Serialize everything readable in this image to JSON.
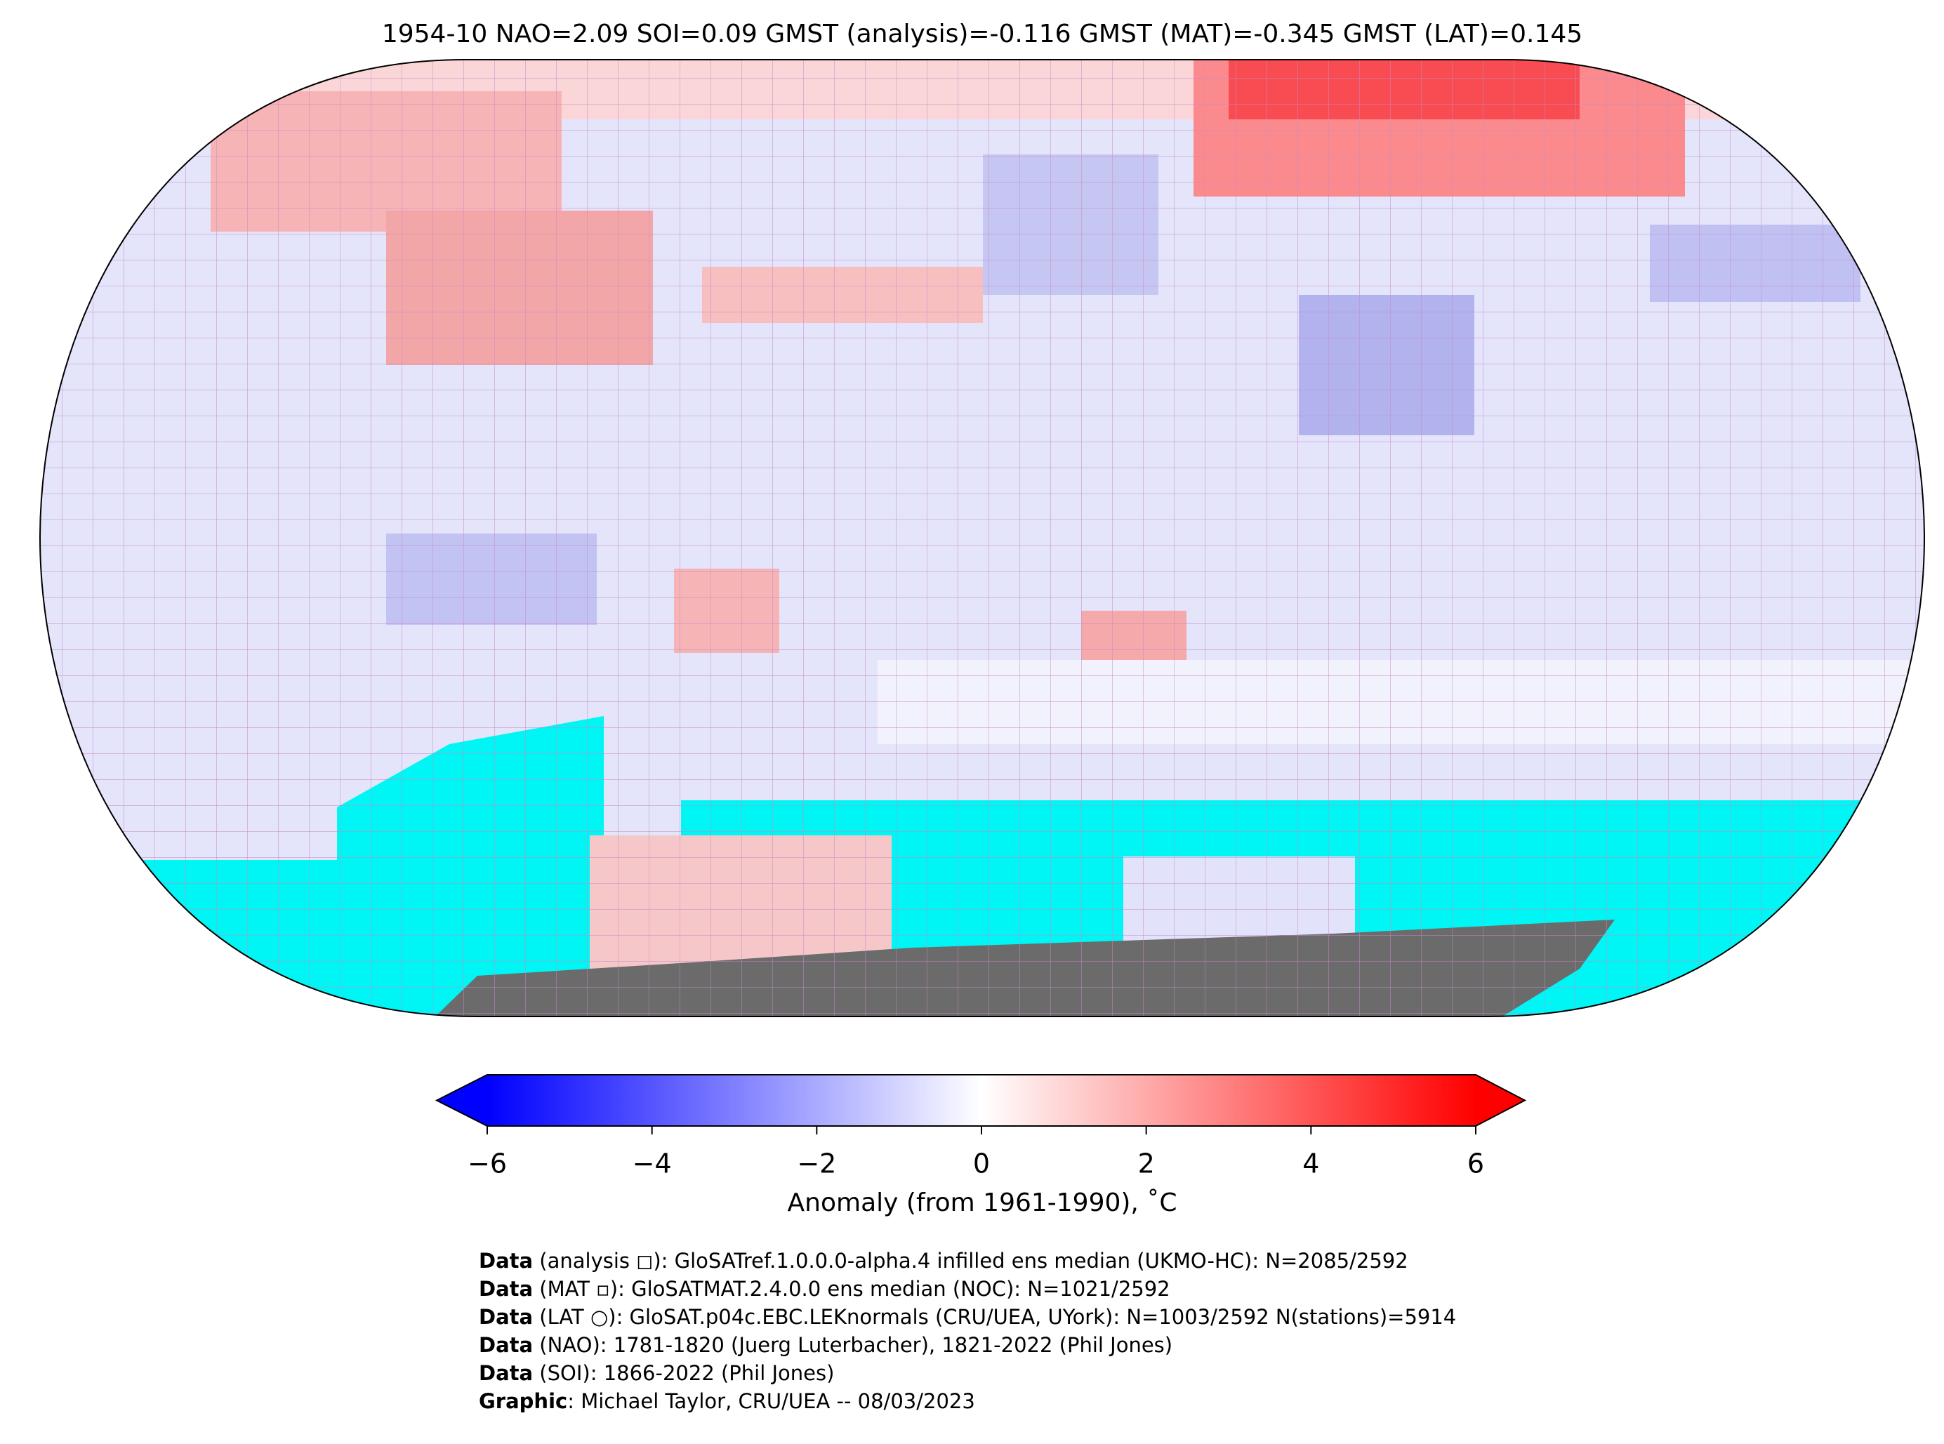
{
  "header": {
    "title": "1954-10 NAO=2.09 SOI=0.09 GMST (analysis)=-0.116 GMST (MAT)=-0.345 GMST (LAT)=0.145"
  },
  "colorbar": {
    "range": [
      -6,
      6
    ],
    "colors": [
      "#0000ff",
      "#ffffff",
      "#ff0000"
    ],
    "ticks": [
      {
        "value": -6,
        "label": "−6"
      },
      {
        "value": -4,
        "label": "−4"
      },
      {
        "value": -2,
        "label": "−2"
      },
      0,
      2,
      4,
      6
    ],
    "label": "Anomaly (from 1961-1990), ˚C"
  },
  "footer": {
    "lines": [
      {
        "bold": "Data",
        "text": " (analysis ◻): GloSATref.1.0.0.0-alpha.4 infilled ens median (UKMO-HC): N=2085/2592"
      },
      {
        "bold": "Data",
        "text": " (MAT ▫): GloSATMAT.2.4.0.0 ens median (NOC): N=1021/2592"
      },
      {
        "bold": "Data",
        "text": " (LAT ○): GloSAT.p04c.EBC.LEKnormals (CRU/UEA, UYork): N=1003/2592 N(stations)=5914"
      },
      {
        "bold": "Data",
        "text": " (NAO): 1781-1820 (Juerg Luterbacher), 1821-2022 (Phil Jones)"
      },
      {
        "bold": "Data",
        "text": " (SOI): 1866-2022 (Phil Jones)"
      },
      {
        "bold": "Graphic",
        "text": ": Michael Taylor, CRU/UEA -- 08/03/2023"
      }
    ]
  }
}
